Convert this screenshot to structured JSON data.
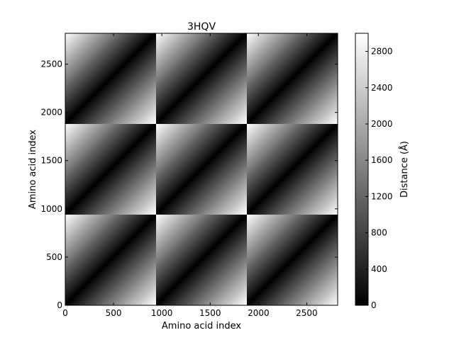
{
  "chart_data": {
    "type": "heatmap",
    "title": "3HQV",
    "xlabel": "Amino acid index",
    "ylabel": "Amino acid index",
    "colorbar_label": "Distance (Å)",
    "colormap": "gray",
    "xlim": [
      0,
      2820
    ],
    "ylim": [
      0,
      2820
    ],
    "x_ticks": [
      0,
      500,
      1000,
      1500,
      2000,
      2500
    ],
    "y_ticks": [
      0,
      500,
      1000,
      1500,
      2000,
      2500
    ],
    "colorbar_ticks": [
      0,
      400,
      800,
      1200,
      1600,
      2000,
      2400,
      2800
    ],
    "colorbar_range": [
      0,
      3000
    ],
    "block_grid": [
      3,
      3
    ],
    "block_size": 940,
    "description": "Pairwise distance matrix composed of 3x3 repeated blocks; within each block distance is near 0 along the diagonal and increases toward the off-diagonal corners."
  }
}
